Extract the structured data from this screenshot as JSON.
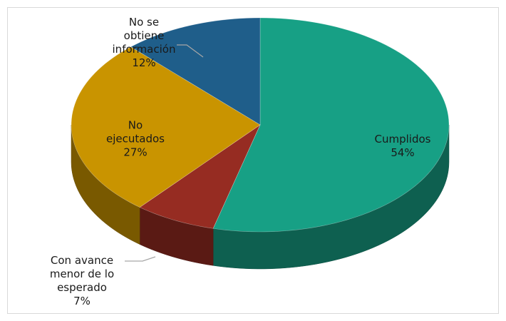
{
  "chart_data": {
    "type": "pie3d",
    "categories": [
      "Cumplidos",
      "Con avance menor de lo esperado",
      "No ejecutados",
      "No se obtiene información"
    ],
    "values": [
      54,
      7,
      27,
      12
    ],
    "value_labels": [
      "54%",
      "7%",
      "27%",
      "12%"
    ],
    "colors": [
      "#17a085",
      "#962c22",
      "#c99400",
      "#1f5e8a"
    ]
  }
}
